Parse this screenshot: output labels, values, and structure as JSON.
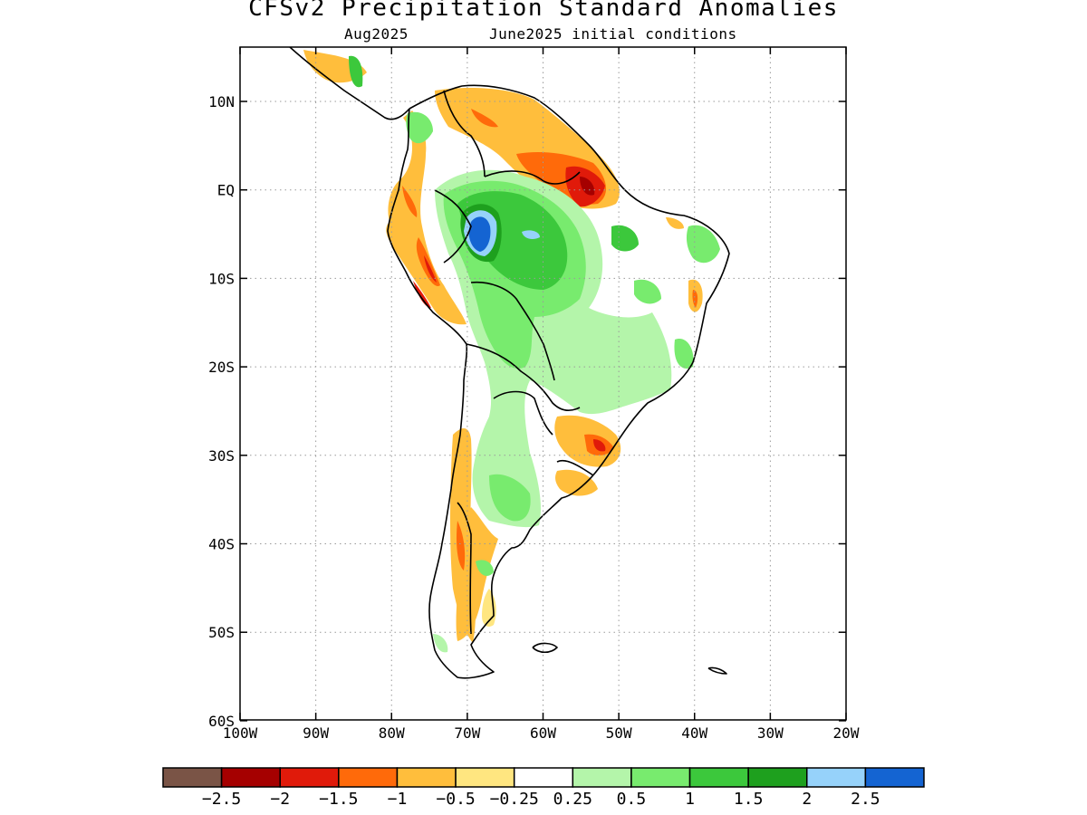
{
  "title": "CFSv2 Precipitation Standard Anomalies",
  "subtitle_left": "Aug2025",
  "subtitle_right": "June2025 initial conditions",
  "map": {
    "y_ticks": [
      "10N",
      "EQ",
      "10S",
      "20S",
      "30S",
      "40S",
      "50S",
      "60S"
    ],
    "x_ticks": [
      "100W",
      "90W",
      "80W",
      "70W",
      "60W",
      "50W",
      "40W",
      "30W",
      "20W"
    ],
    "grid": true
  },
  "colorbar": {
    "colors": [
      "#7a5446",
      "#a50000",
      "#e01a0a",
      "#ff6a0a",
      "#ffbe3c",
      "#ffe680",
      "#ffffff",
      "#b4f5aa",
      "#78eb6e",
      "#3cc83c",
      "#1ea01e",
      "#96d2fa",
      "#1464d2"
    ],
    "labels": [
      "−2.5",
      "−2",
      "−1.5",
      "−1",
      "−0.5",
      "−0.25",
      "0.25",
      "0.5",
      "1",
      "1.5",
      "2",
      "2.5"
    ]
  }
}
